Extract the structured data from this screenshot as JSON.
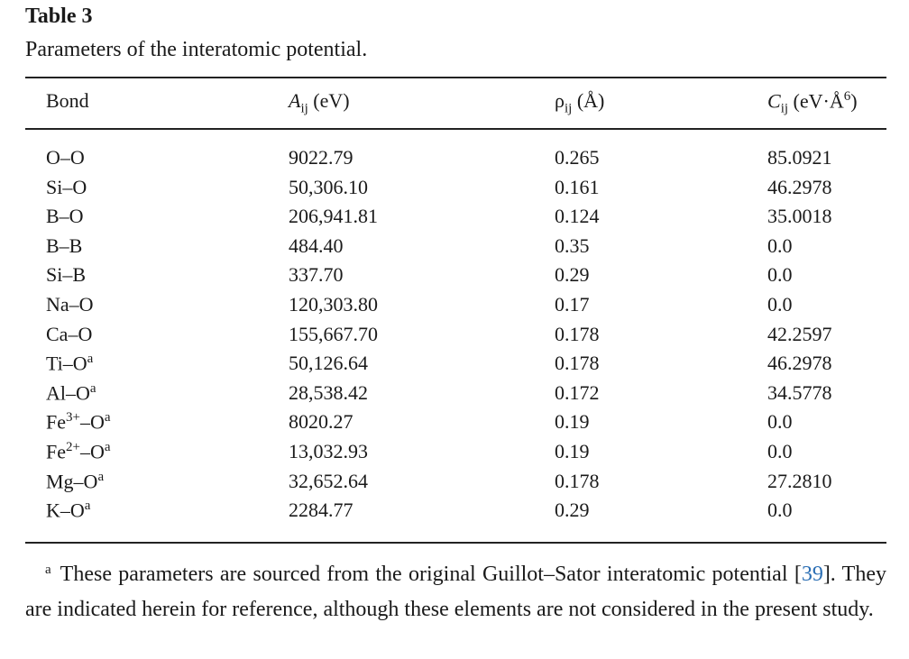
{
  "table": {
    "label": "Table 3",
    "caption": "Parameters of the interatomic potential.",
    "header": [
      [
        {
          "text": "Bond"
        }
      ],
      [
        {
          "ital": "A"
        },
        {
          "sub": "ij"
        },
        {
          "text": " (eV)"
        }
      ],
      [
        {
          "text": "ρ"
        },
        {
          "sub": "ij"
        },
        {
          "text": " (Å)"
        }
      ],
      [
        {
          "ital": "C"
        },
        {
          "sub": "ij"
        },
        {
          "text": " (eV·Å"
        },
        {
          "sup": "6"
        },
        {
          "text": ")"
        }
      ]
    ],
    "rows": [
      {
        "bond": [
          {
            "text": "O–O"
          }
        ],
        "cells": [
          "9022.79",
          "0.265",
          "85.0921"
        ]
      },
      {
        "bond": [
          {
            "text": "Si–O"
          }
        ],
        "cells": [
          "50,306.10",
          "0.161",
          "46.2978"
        ]
      },
      {
        "bond": [
          {
            "text": "B–O"
          }
        ],
        "cells": [
          "206,941.81",
          "0.124",
          "35.0018"
        ]
      },
      {
        "bond": [
          {
            "text": "B–B"
          }
        ],
        "cells": [
          "484.40",
          "0.35",
          "0.0"
        ]
      },
      {
        "bond": [
          {
            "text": "Si–B"
          }
        ],
        "cells": [
          "337.70",
          "0.29",
          "0.0"
        ]
      },
      {
        "bond": [
          {
            "text": "Na–O"
          }
        ],
        "cells": [
          "120,303.80",
          "0.17",
          "0.0"
        ]
      },
      {
        "bond": [
          {
            "text": "Ca–O"
          }
        ],
        "cells": [
          "155,667.70",
          "0.178",
          "42.2597"
        ]
      },
      {
        "bond": [
          {
            "text": "Ti–O"
          },
          {
            "sup": "a"
          }
        ],
        "cells": [
          "50,126.64",
          "0.178",
          "46.2978"
        ]
      },
      {
        "bond": [
          {
            "text": "Al–O"
          },
          {
            "sup": "a"
          }
        ],
        "cells": [
          "28,538.42",
          "0.172",
          "34.5778"
        ]
      },
      {
        "bond": [
          {
            "text": "Fe"
          },
          {
            "sup": "3+"
          },
          {
            "text": "–O"
          },
          {
            "sup": "a"
          }
        ],
        "cells": [
          "8020.27",
          "0.19",
          "0.0"
        ]
      },
      {
        "bond": [
          {
            "text": "Fe"
          },
          {
            "sup": "2+"
          },
          {
            "text": "–O"
          },
          {
            "sup": "a"
          }
        ],
        "cells": [
          "13,032.93",
          "0.19",
          "0.0"
        ]
      },
      {
        "bond": [
          {
            "text": "Mg–O"
          },
          {
            "sup": "a"
          }
        ],
        "cells": [
          "32,652.64",
          "0.178",
          "27.2810"
        ]
      },
      {
        "bond": [
          {
            "text": "K–O"
          },
          {
            "sup": "a"
          }
        ],
        "cells": [
          "2284.77",
          "0.29",
          "0.0"
        ]
      }
    ],
    "footnote": {
      "mark": "a",
      "before": "These parameters are sourced from the original Guillot–Sator interatomic potential [",
      "ref": "39",
      "after": "]. They are indicated herein for reference, although these elements are not considered in the present study."
    }
  }
}
